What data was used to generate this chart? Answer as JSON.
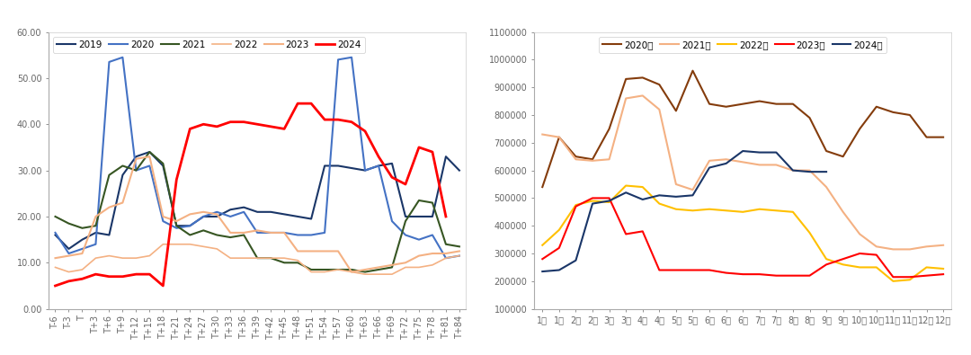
{
  "chart1": {
    "ylim": [
      0.0,
      60.0
    ],
    "yticks": [
      0.0,
      10.0,
      20.0,
      30.0,
      40.0,
      50.0,
      60.0
    ],
    "xticks": [
      "T-6",
      "T-3",
      "T",
      "T+3",
      "T+6",
      "T+9",
      "T+12",
      "T+15",
      "T+18",
      "T+21",
      "T+24",
      "T+27",
      "T+30",
      "T+33",
      "T+36",
      "T+39",
      "T+42",
      "T+45",
      "T+48",
      "T+51",
      "T+54",
      "T+57",
      "T+60",
      "T+63",
      "T+66",
      "T+69",
      "T+72",
      "T+75",
      "T+78",
      "T+81",
      "T+84"
    ],
    "series": [
      {
        "name": "2019",
        "color": "#1a3668",
        "linewidth": 1.5,
        "values": [
          16.0,
          13.0,
          15.0,
          16.5,
          16.0,
          29.0,
          33.0,
          34.0,
          31.0,
          18.0,
          18.0,
          20.0,
          20.0,
          21.5,
          22.0,
          21.0,
          21.0,
          20.5,
          20.0,
          19.5,
          31.0,
          31.0,
          30.5,
          30.0,
          31.0,
          31.5,
          20.0,
          20.0,
          20.0,
          33.0,
          30.0
        ]
      },
      {
        "name": "2020",
        "color": "#4472c4",
        "linewidth": 1.5,
        "values": [
          16.5,
          12.0,
          13.0,
          14.0,
          53.5,
          54.5,
          30.0,
          31.0,
          19.0,
          17.5,
          18.0,
          20.0,
          21.0,
          20.0,
          21.0,
          16.5,
          16.5,
          16.5,
          16.0,
          16.0,
          16.5,
          54.0,
          54.5,
          30.0,
          31.0,
          19.0,
          16.0,
          15.0,
          16.0,
          11.0,
          11.5
        ]
      },
      {
        "name": "2021",
        "color": "#375623",
        "linewidth": 1.5,
        "values": [
          20.0,
          18.5,
          17.5,
          18.0,
          29.0,
          31.0,
          30.0,
          34.0,
          31.5,
          18.0,
          16.0,
          17.0,
          16.0,
          15.5,
          16.0,
          11.0,
          11.0,
          10.0,
          10.0,
          8.5,
          8.5,
          8.5,
          8.5,
          8.0,
          8.5,
          9.0,
          19.0,
          23.5,
          23.0,
          14.0,
          13.5
        ]
      },
      {
        "name": "2022",
        "color": "#f4b183",
        "linewidth": 1.2,
        "values": [
          9.0,
          8.0,
          8.5,
          11.0,
          11.5,
          11.0,
          11.0,
          11.5,
          14.0,
          14.0,
          14.0,
          13.5,
          13.0,
          11.0,
          11.0,
          11.0,
          11.0,
          11.0,
          10.5,
          8.0,
          8.0,
          8.5,
          8.0,
          7.5,
          7.5,
          7.5,
          9.0,
          9.0,
          9.5,
          11.0,
          11.5
        ]
      },
      {
        "name": "2023",
        "color": "#f4b183",
        "linewidth": 1.5,
        "values": [
          11.0,
          11.5,
          12.0,
          20.0,
          22.0,
          23.0,
          32.5,
          33.0,
          20.0,
          19.0,
          20.5,
          21.0,
          20.5,
          16.5,
          16.5,
          17.0,
          16.5,
          16.5,
          12.5,
          12.5,
          12.5,
          12.5,
          8.0,
          8.5,
          9.0,
          9.5,
          10.0,
          11.5,
          12.0,
          12.0,
          12.5
        ]
      },
      {
        "name": "2024",
        "color": "#ff0000",
        "linewidth": 2.0,
        "values": [
          5.0,
          6.0,
          6.5,
          7.5,
          7.0,
          7.0,
          7.5,
          7.5,
          5.0,
          28.0,
          39.0,
          40.0,
          39.5,
          40.5,
          40.5,
          40.0,
          39.5,
          39.0,
          44.5,
          44.5,
          41.0,
          41.0,
          40.5,
          38.5,
          33.0,
          28.5,
          27.0,
          35.0,
          34.0,
          20.0,
          null
        ]
      }
    ]
  },
  "chart2": {
    "ylim": [
      100000,
      1100000
    ],
    "yticks": [
      100000,
      200000,
      300000,
      400000,
      500000,
      600000,
      700000,
      800000,
      900000,
      1000000,
      1100000
    ],
    "xticks": [
      "1月",
      "1月",
      "2月",
      "2月",
      "3月",
      "3月",
      "4月",
      "4月",
      "5月",
      "5月",
      "6月",
      "6月",
      "6月",
      "7月",
      "7月",
      "8月",
      "8月",
      "9月",
      "9月",
      "10月",
      "10月",
      "11月",
      "11月",
      "12月",
      "12月"
    ],
    "series": [
      {
        "name": "2020年",
        "color": "#843c0c",
        "linewidth": 1.5,
        "values": [
          540000,
          720000,
          650000,
          640000,
          750000,
          930000,
          935000,
          910000,
          815000,
          960000,
          840000,
          830000,
          840000,
          850000,
          840000,
          840000,
          790000,
          670000,
          650000,
          750000,
          830000,
          810000,
          800000,
          720000,
          720000
        ]
      },
      {
        "name": "2021年",
        "color": "#f4b183",
        "linewidth": 1.5,
        "values": [
          730000,
          720000,
          640000,
          635000,
          640000,
          860000,
          870000,
          820000,
          550000,
          530000,
          635000,
          640000,
          630000,
          620000,
          620000,
          600000,
          600000,
          540000,
          450000,
          370000,
          325000,
          315000,
          315000,
          325000,
          330000
        ]
      },
      {
        "name": "2022年",
        "color": "#ffc000",
        "linewidth": 1.5,
        "values": [
          330000,
          385000,
          475000,
          490000,
          485000,
          545000,
          540000,
          480000,
          460000,
          455000,
          460000,
          455000,
          450000,
          460000,
          455000,
          450000,
          375000,
          280000,
          260000,
          250000,
          250000,
          200000,
          205000,
          250000,
          245000
        ]
      },
      {
        "name": "2023年",
        "color": "#ff0000",
        "linewidth": 1.5,
        "values": [
          280000,
          320000,
          470000,
          500000,
          500000,
          370000,
          380000,
          240000,
          240000,
          240000,
          240000,
          230000,
          225000,
          225000,
          220000,
          220000,
          220000,
          260000,
          280000,
          300000,
          295000,
          215000,
          215000,
          220000,
          225000
        ]
      },
      {
        "name": "2024年",
        "color": "#1a3668",
        "linewidth": 1.5,
        "values": [
          235000,
          240000,
          275000,
          480000,
          490000,
          520000,
          495000,
          510000,
          505000,
          510000,
          610000,
          625000,
          670000,
          665000,
          665000,
          600000,
          595000,
          595000,
          null,
          null,
          null,
          null,
          null,
          null,
          null
        ]
      }
    ]
  },
  "figure_bg": "#ffffff",
  "top_bar_color": "#000000",
  "top_bar_height": 0.065,
  "chart_bg": "#ffffff",
  "border_color": "#cccccc",
  "legend_fontsize": 7.5,
  "tick_fontsize": 7.0,
  "spine_color": "#aaaaaa",
  "tick_color": "#666666"
}
